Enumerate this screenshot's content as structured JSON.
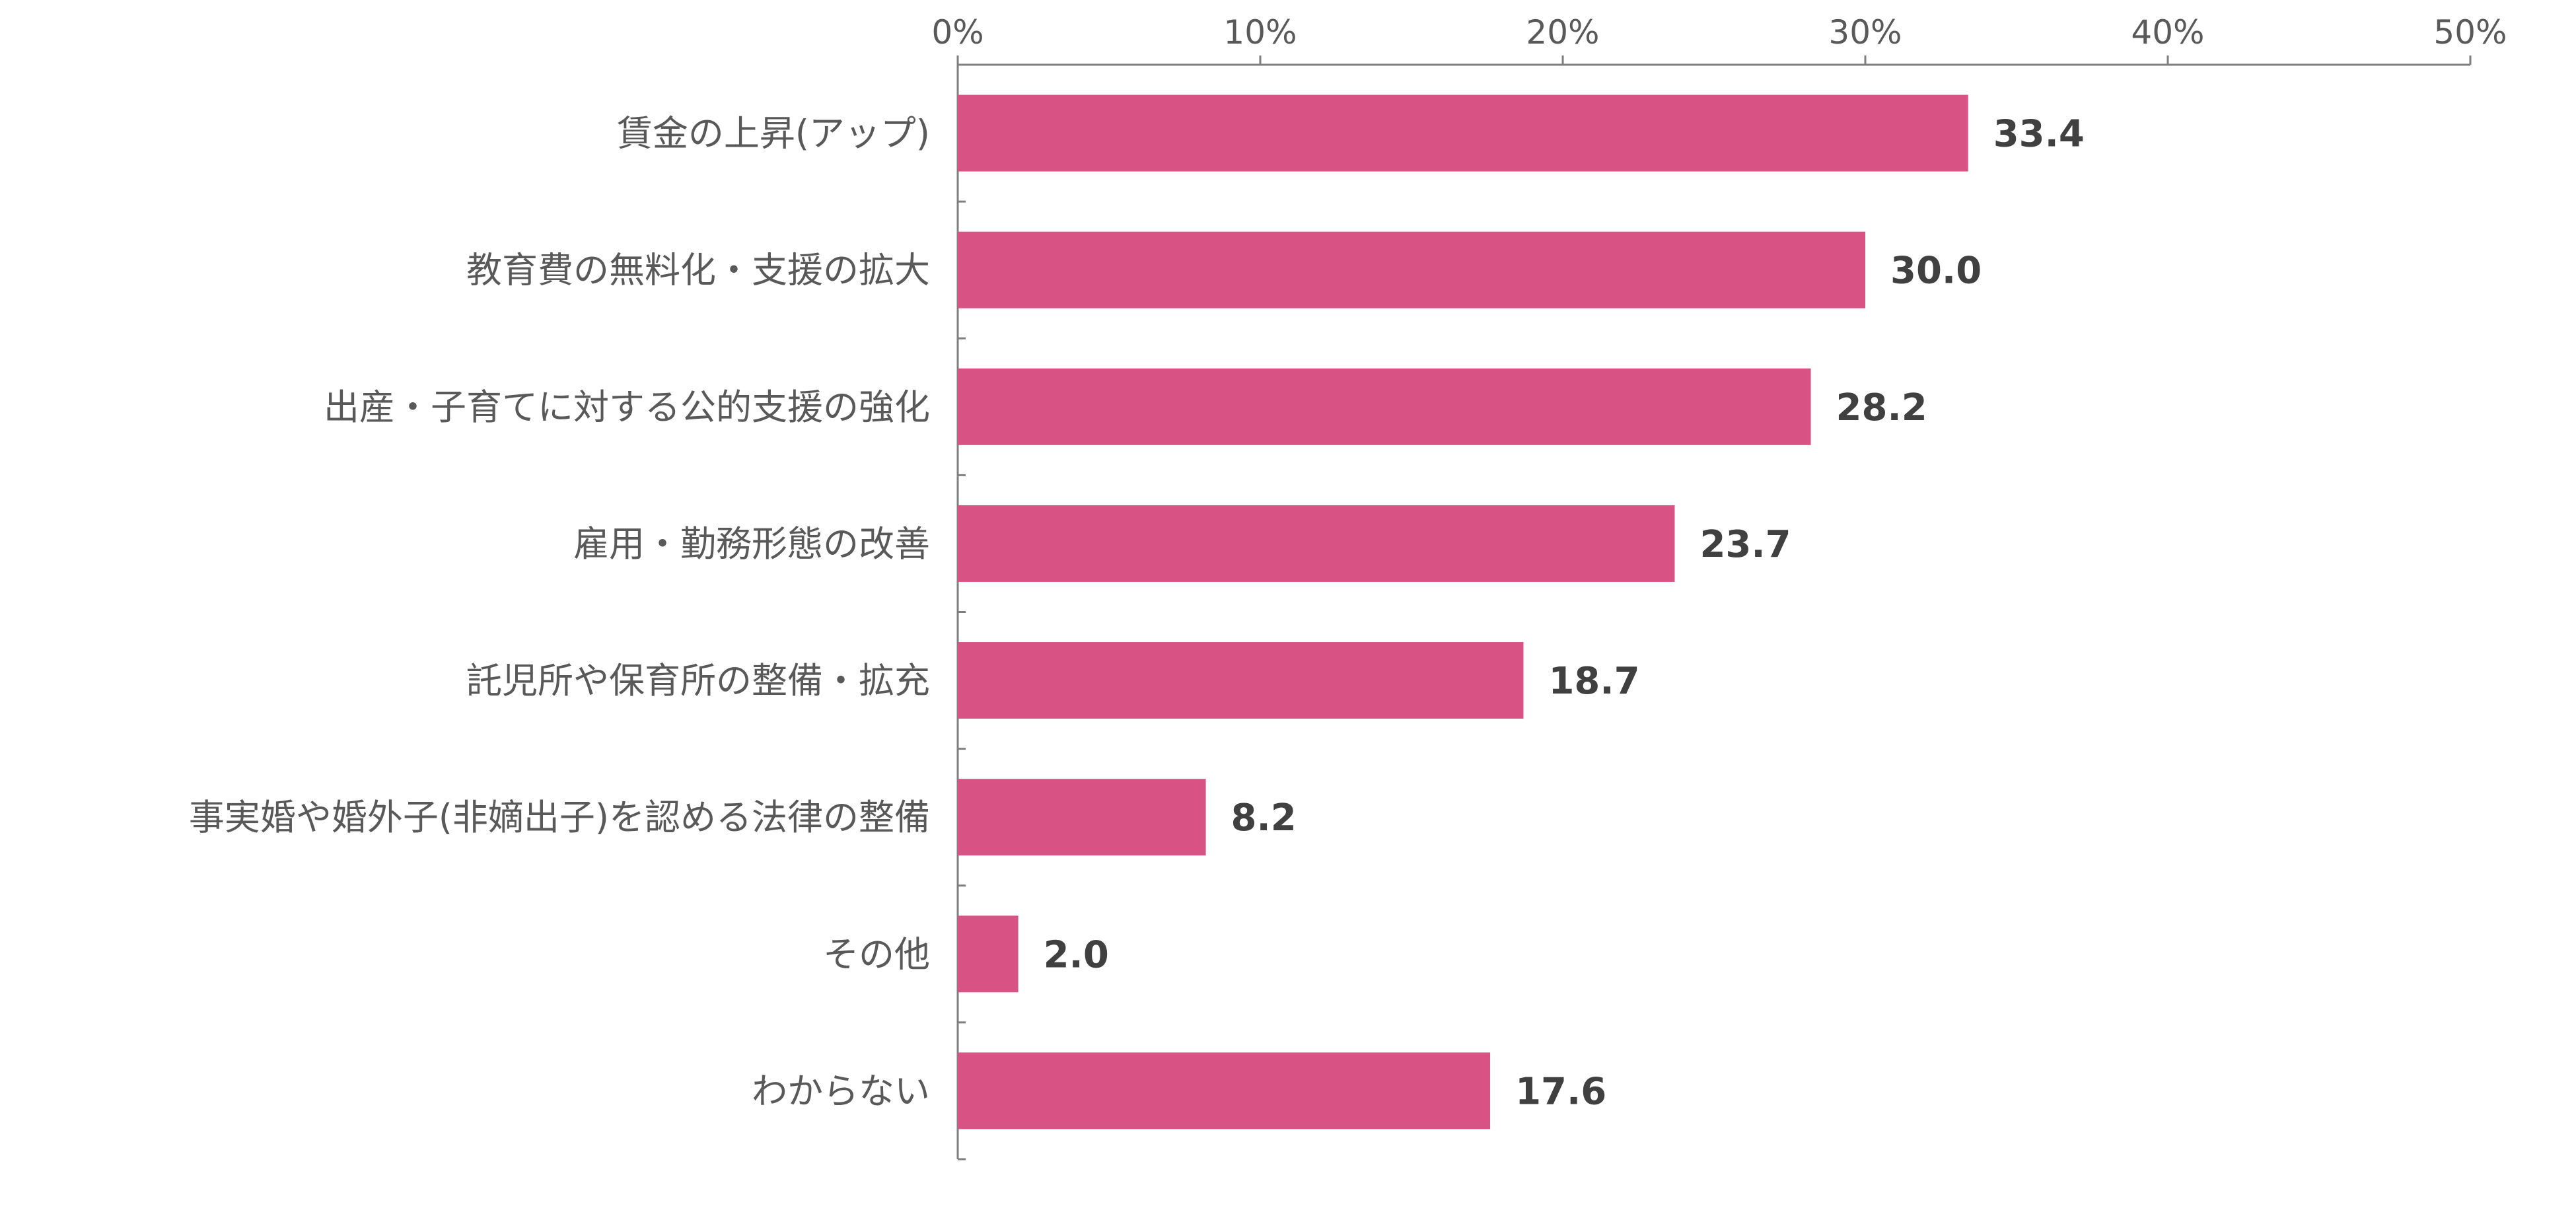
{
  "chart_data": {
    "type": "bar",
    "orientation": "horizontal",
    "categories": [
      "賃金の上昇(アップ)",
      "教育費の無料化・支援の拡大",
      "出産・子育てに対する公的支援の強化",
      "雇用・勤務形態の改善",
      "託児所や保育所の整備・拡充",
      "事実婚や婚外子(非嫡出子)を認める法律の整備",
      "その他",
      "わからない"
    ],
    "values": [
      33.4,
      30.0,
      28.2,
      23.7,
      18.7,
      8.2,
      2.0,
      17.6
    ],
    "data_labels": [
      "33.4",
      "30.0",
      "28.2",
      "23.7",
      "18.7",
      "8.2",
      "2.0",
      "17.6"
    ],
    "xlim": [
      0,
      50
    ],
    "x_ticks": [
      0,
      10,
      20,
      30,
      40,
      50
    ],
    "x_tick_labels": [
      "0%",
      "10%",
      "20%",
      "30%",
      "40%",
      "50%"
    ],
    "x_axis_position": "top",
    "grid": false,
    "legend": "none",
    "bar_color": "#d95284"
  }
}
